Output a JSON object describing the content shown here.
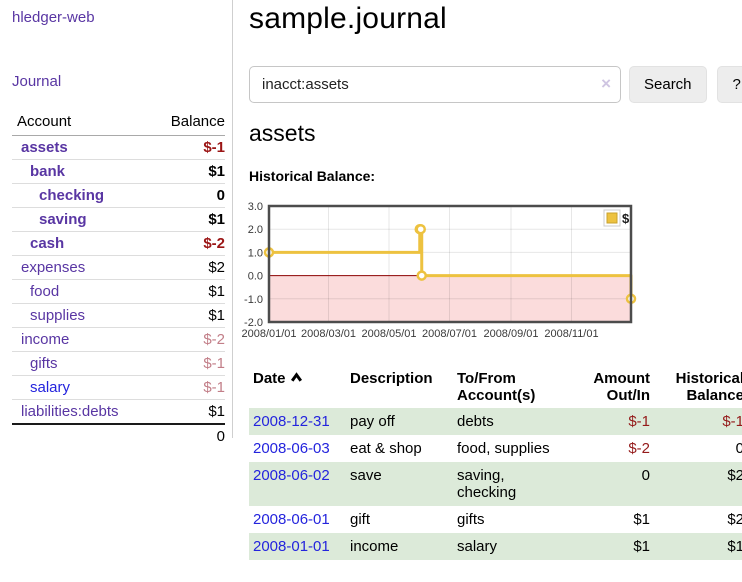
{
  "app": {
    "title": "hledger-web"
  },
  "sidebar": {
    "journal_label": "Journal",
    "accounts_table": {
      "headers": {
        "account": "Account",
        "balance": "Balance"
      },
      "rows": [
        {
          "name": "assets",
          "balance": "$-1",
          "indent": 1,
          "bold": true,
          "balance_style": "neg-strong"
        },
        {
          "name": "bank",
          "balance": "$1",
          "indent": 2,
          "bold": true,
          "balance_style": ""
        },
        {
          "name": "checking",
          "balance": "0",
          "indent": 3,
          "bold": true,
          "balance_style": ""
        },
        {
          "name": "saving",
          "balance": "$1",
          "indent": 3,
          "bold": true,
          "balance_style": ""
        },
        {
          "name": "cash",
          "balance": "$-2",
          "indent": 2,
          "bold": true,
          "balance_style": "neg-strong"
        },
        {
          "name": "expenses",
          "balance": "$2",
          "indent": 1,
          "bold": false,
          "balance_style": ""
        },
        {
          "name": "food",
          "balance": "$1",
          "indent": 2,
          "bold": false,
          "balance_style": ""
        },
        {
          "name": "supplies",
          "balance": "$1",
          "indent": 2,
          "bold": false,
          "balance_style": ""
        },
        {
          "name": "income",
          "balance": "$-2",
          "indent": 1,
          "bold": false,
          "balance_style": "neg-muted"
        },
        {
          "name": "gifts",
          "balance": "$-1",
          "indent": 2,
          "bold": false,
          "balance_style": "neg-muted"
        },
        {
          "name": "salary",
          "balance": "$-1",
          "indent": 2,
          "bold": false,
          "balance_style": "neg-muted",
          "link": "blue"
        },
        {
          "name": "liabilities:debts",
          "balance": "$1",
          "indent": 1,
          "bold": false,
          "balance_style": ""
        }
      ],
      "total": "0"
    }
  },
  "main": {
    "title": "sample.journal",
    "search": {
      "value": "inacct:assets",
      "clear_icon": "×",
      "button_label": "Search",
      "help_label": "?"
    },
    "account_heading": "assets",
    "section_label": "Historical Balance:"
  },
  "chart_data": {
    "type": "line",
    "style": "step",
    "title": "Historical Balance:",
    "series": [
      {
        "name": "$",
        "color": "#edc240",
        "points": [
          [
            "2008-01-01",
            1
          ],
          [
            "2008-06-01",
            2
          ],
          [
            "2008-06-02",
            2
          ],
          [
            "2008-06-03",
            0
          ],
          [
            "2008-12-31",
            -1
          ]
        ]
      }
    ],
    "x_ticks": [
      "2008/01/01",
      "2008/03/01",
      "2008/05/01",
      "2008/07/01",
      "2008/09/01",
      "2008/11/01"
    ],
    "y_ticks": [
      3.0,
      2.0,
      1.0,
      0.0,
      -1.0,
      -2.0
    ],
    "xlim": [
      "2008-01-01",
      "2008-12-31"
    ],
    "ylim": [
      -2,
      3
    ],
    "grid": true,
    "legend": {
      "position": "top-right",
      "entries": [
        "$"
      ]
    },
    "negative_region_color": "#fbdcdc",
    "zero_line_color": "#8b0000",
    "border_color": "#4c4c4c",
    "tick_label_color": "#3a3a3a"
  },
  "register": {
    "headers": {
      "date": "Date",
      "sort_icon": "chevron-up",
      "description": "Description",
      "account_line1": "To/From",
      "account_line2": "Account(s)",
      "amount_line1": "Amount",
      "amount_line2": "Out/In",
      "balance_line1": "Historical",
      "balance_line2": "Balance"
    },
    "rows": [
      {
        "date": "2008-12-31",
        "description": "pay off",
        "accounts": "debts",
        "amount": "$-1",
        "amount_negative": true,
        "balance": "$-1",
        "balance_negative": true
      },
      {
        "date": "2008-06-03",
        "description": "eat & shop",
        "accounts": "food, supplies",
        "amount": "$-2",
        "amount_negative": true,
        "balance": "0",
        "balance_negative": false
      },
      {
        "date": "2008-06-02",
        "description": "save",
        "accounts": "saving,\nchecking",
        "amount": "0",
        "amount_negative": false,
        "balance": "$2",
        "balance_negative": false
      },
      {
        "date": "2008-06-01",
        "description": "gift",
        "accounts": "gifts",
        "amount": "$1",
        "amount_negative": false,
        "balance": "$2",
        "balance_negative": false
      },
      {
        "date": "2008-01-01",
        "description": "income",
        "accounts": "salary",
        "amount": "$1",
        "amount_negative": false,
        "balance": "$1",
        "balance_negative": false
      }
    ]
  }
}
